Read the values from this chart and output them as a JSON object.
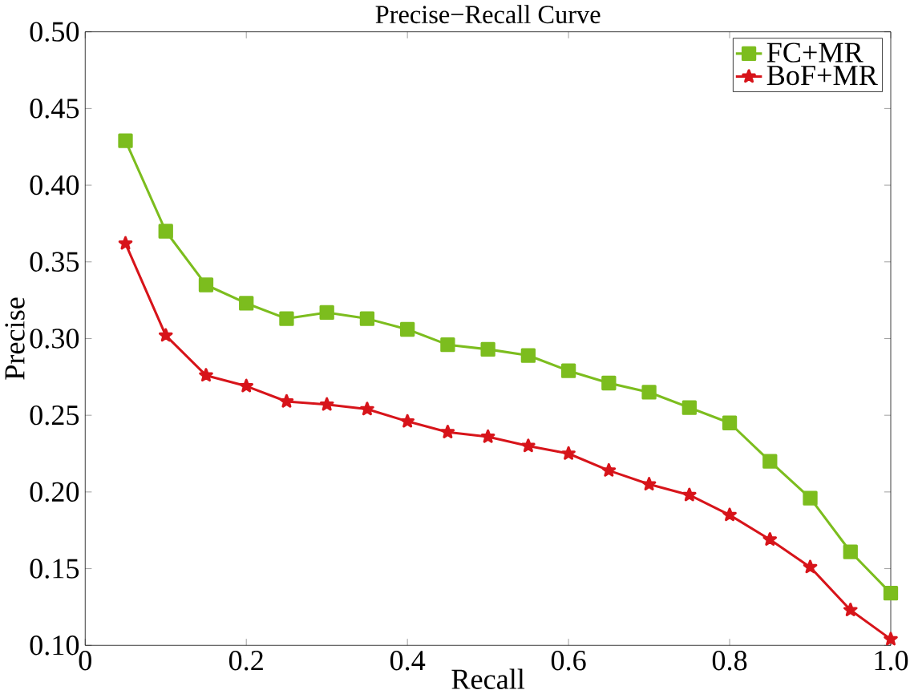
{
  "chart_data": {
    "type": "line",
    "title": "Precise−Recall Curve",
    "xlabel": "Recall",
    "ylabel": "Precise",
    "x": [
      0.05,
      0.1,
      0.15,
      0.2,
      0.25,
      0.3,
      0.35,
      0.4,
      0.45,
      0.5,
      0.55,
      0.6,
      0.65,
      0.7,
      0.75,
      0.8,
      0.85,
      0.9,
      0.95,
      1.0
    ],
    "series": [
      {
        "name": "FC+MR",
        "color": "#7cbd1e",
        "marker": "square",
        "values": [
          0.429,
          0.37,
          0.335,
          0.323,
          0.313,
          0.317,
          0.313,
          0.306,
          0.296,
          0.293,
          0.289,
          0.279,
          0.271,
          0.265,
          0.255,
          0.245,
          0.22,
          0.196,
          0.161,
          0.134
        ]
      },
      {
        "name": "BoF+MR",
        "color": "#d7141a",
        "marker": "star",
        "values": [
          0.362,
          0.302,
          0.276,
          0.269,
          0.259,
          0.257,
          0.254,
          0.246,
          0.239,
          0.236,
          0.23,
          0.225,
          0.214,
          0.205,
          0.198,
          0.185,
          0.169,
          0.151,
          0.123,
          0.104
        ]
      }
    ],
    "xlim": [
      0,
      1
    ],
    "ylim": [
      0.1,
      0.5
    ],
    "xticks": [
      0,
      0.2,
      0.4,
      0.6,
      0.8,
      {
        "value": 1,
        "label": "1.0"
      }
    ],
    "yticks": [
      {
        "value": 0.1,
        "label": "0.10"
      },
      {
        "value": 0.15,
        "label": "0.15"
      },
      {
        "value": 0.2,
        "label": "0.20"
      },
      {
        "value": 0.25,
        "label": "0.25"
      },
      {
        "value": 0.3,
        "label": "0.30"
      },
      {
        "value": 0.35,
        "label": "0.35"
      },
      {
        "value": 0.4,
        "label": "0.40"
      },
      {
        "value": 0.45,
        "label": "0.45"
      },
      {
        "value": 0.5,
        "label": "0.50"
      }
    ],
    "legend": "top right",
    "grid": false,
    "line_style": "solid"
  }
}
